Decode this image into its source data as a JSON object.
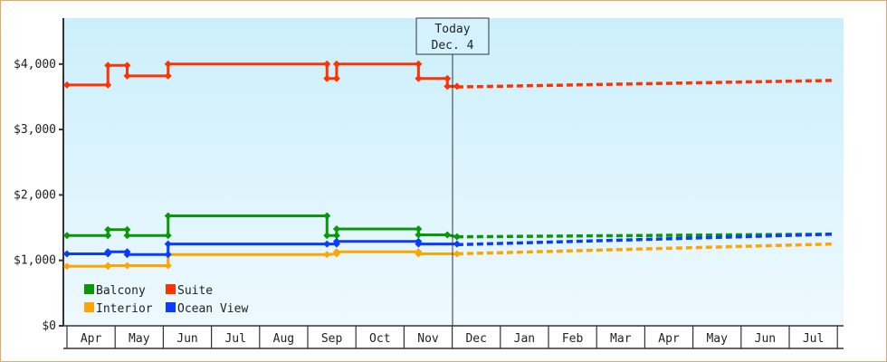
{
  "chart_data": {
    "type": "line",
    "title": "",
    "xlabel": "",
    "ylabel": "",
    "ylim": [
      0,
      4700
    ],
    "yticks": [
      "$0",
      "$1,000",
      "$2,000",
      "$3,000",
      "$4,000"
    ],
    "categories": [
      "Apr",
      "May",
      "Jun",
      "Jul",
      "Aug",
      "Sep",
      "Oct",
      "Nov",
      "Dec",
      "Jan",
      "Feb",
      "Mar",
      "Apr",
      "May",
      "Jun",
      "Jul"
    ],
    "grid": false,
    "legend_position": "bottom-left inside",
    "annotation": {
      "line1": "Today",
      "line2": "Dec. 4"
    },
    "series": [
      {
        "name": "Balcony",
        "color": "#089808",
        "history": [
          [
            0,
            1380
          ],
          [
            0.85,
            1380
          ],
          [
            0.85,
            1470
          ],
          [
            1.25,
            1470
          ],
          [
            1.25,
            1380
          ],
          [
            2.1,
            1380
          ],
          [
            2.1,
            1680
          ],
          [
            5.4,
            1680
          ],
          [
            5.4,
            1380
          ],
          [
            5.6,
            1380
          ],
          [
            5.6,
            1480
          ],
          [
            7.3,
            1480
          ],
          [
            7.3,
            1390
          ],
          [
            7.9,
            1390
          ],
          [
            8.1,
            1360
          ]
        ],
        "forecast": [
          [
            8.1,
            1360
          ],
          [
            15.9,
            1400
          ]
        ]
      },
      {
        "name": "Suite",
        "color": "#ff3300",
        "history": [
          [
            0,
            3680
          ],
          [
            0.85,
            3680
          ],
          [
            0.85,
            3980
          ],
          [
            1.25,
            3980
          ],
          [
            1.25,
            3820
          ],
          [
            2.1,
            3820
          ],
          [
            2.1,
            4000
          ],
          [
            5.4,
            4000
          ],
          [
            5.4,
            3780
          ],
          [
            5.6,
            3780
          ],
          [
            5.6,
            4000
          ],
          [
            7.3,
            4000
          ],
          [
            7.3,
            3780
          ],
          [
            7.9,
            3780
          ],
          [
            7.9,
            3660
          ],
          [
            8.1,
            3660
          ]
        ],
        "forecast": [
          [
            8.1,
            3650
          ],
          [
            15.9,
            3750
          ]
        ]
      },
      {
        "name": "Interior",
        "color": "#ffa500",
        "history": [
          [
            0,
            910
          ],
          [
            0.85,
            910
          ],
          [
            0.85,
            920
          ],
          [
            1.25,
            920
          ],
          [
            2.1,
            920
          ],
          [
            2.1,
            1090
          ],
          [
            5.4,
            1090
          ],
          [
            5.6,
            1100
          ],
          [
            5.6,
            1130
          ],
          [
            7.3,
            1130
          ],
          [
            7.3,
            1100
          ],
          [
            8.1,
            1100
          ]
        ],
        "forecast": [
          [
            8.1,
            1100
          ],
          [
            15.9,
            1250
          ]
        ]
      },
      {
        "name": "Ocean View",
        "color": "#0a3cff",
        "history": [
          [
            0,
            1100
          ],
          [
            0.85,
            1100
          ],
          [
            0.85,
            1130
          ],
          [
            1.25,
            1130
          ],
          [
            1.25,
            1090
          ],
          [
            2.1,
            1090
          ],
          [
            2.1,
            1250
          ],
          [
            5.4,
            1250
          ],
          [
            5.6,
            1250
          ],
          [
            5.6,
            1290
          ],
          [
            7.3,
            1290
          ],
          [
            7.3,
            1250
          ],
          [
            8.1,
            1250
          ]
        ],
        "forecast": [
          [
            8.1,
            1240
          ],
          [
            15.9,
            1400
          ]
        ]
      }
    ]
  }
}
